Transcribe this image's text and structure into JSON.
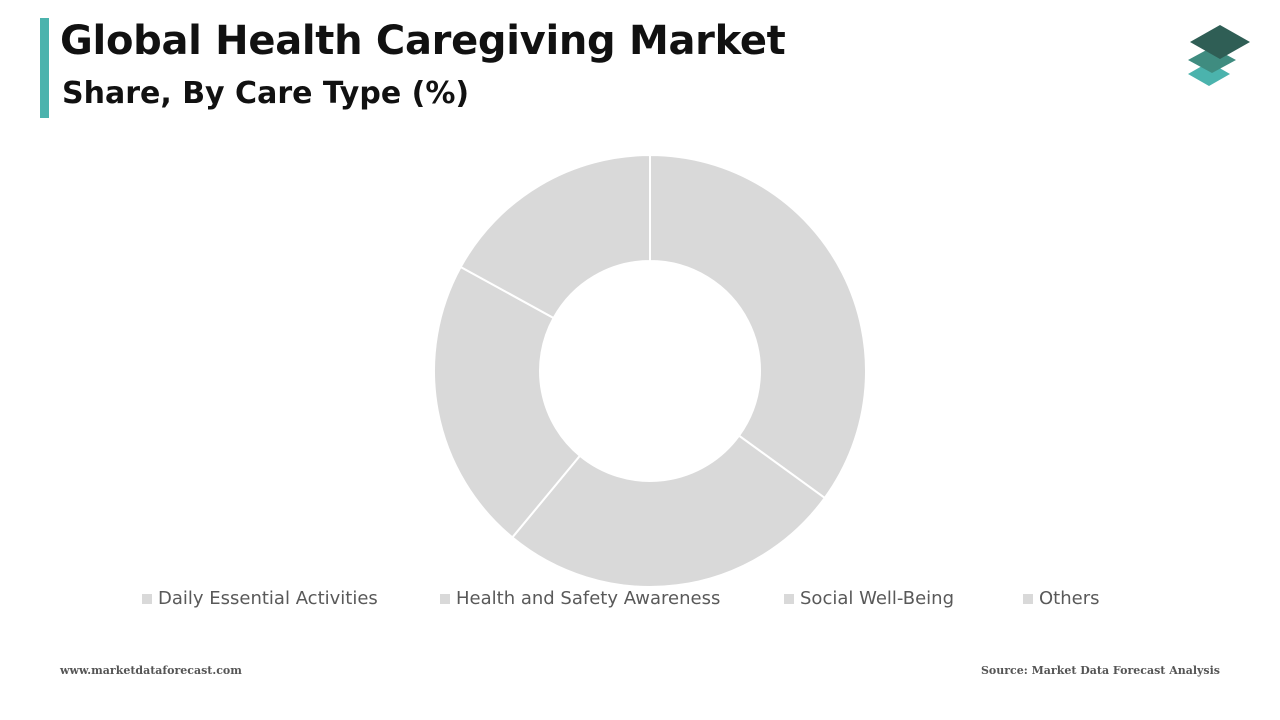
{
  "header": {
    "title": "Global Health Caregiving Market",
    "subtitle": "Share, By Care Type (%)",
    "accent_color": "#4bb3ad"
  },
  "logo": {
    "icon": "stacked-layers-logo-icon",
    "colors": [
      "#2f5e55",
      "#3f8c80",
      "#4bb3ad"
    ]
  },
  "chart_data": {
    "type": "pie",
    "variant": "donut",
    "categories": [
      "Daily Essential Activities",
      "Health and Safety Awareness",
      "Social Well-Being",
      "Others"
    ],
    "values": [
      35,
      26,
      22,
      17
    ],
    "unit": "%",
    "colors": [
      "#d9d9d9",
      "#d9d9d9",
      "#d9d9d9",
      "#d9d9d9"
    ],
    "start_angle_deg": 0,
    "direction": "clockwise",
    "legend_position": "bottom"
  },
  "footer": {
    "website": "www.marketdataforecast.com",
    "source": "Source: Market Data Forecast Analysis"
  }
}
